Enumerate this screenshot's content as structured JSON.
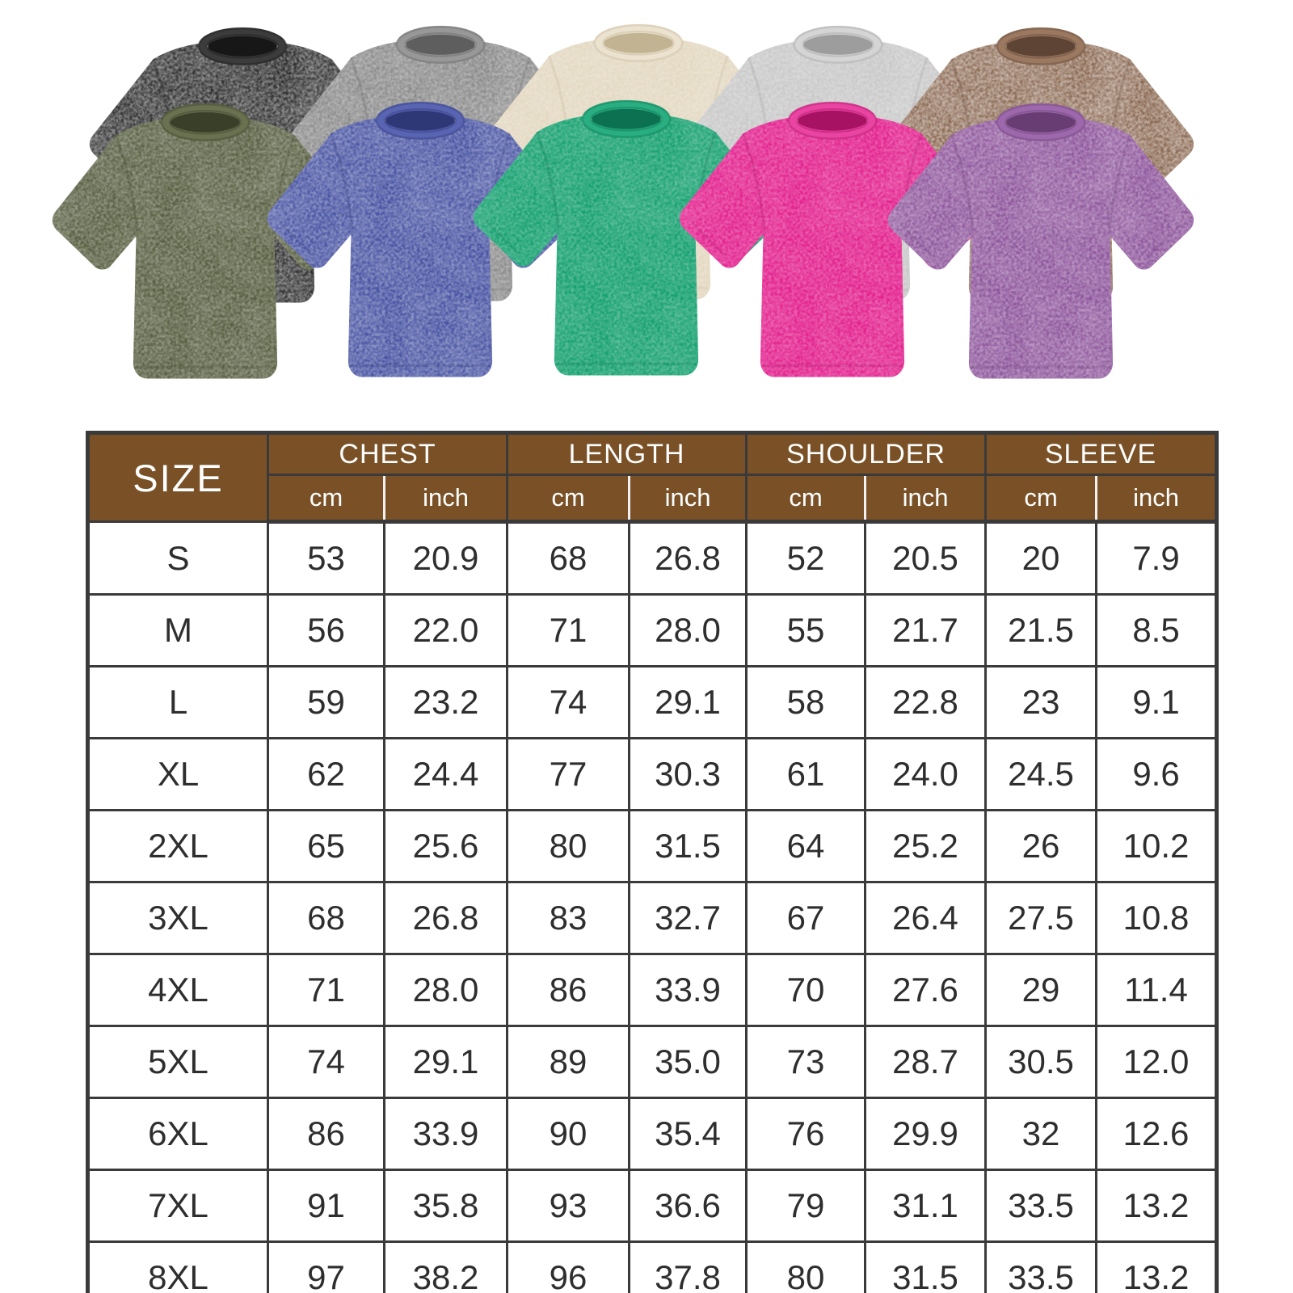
{
  "product_gallery": {
    "shirts": [
      {
        "name": "washed-black",
        "row": "back",
        "color": "#2e2d2d",
        "dark": "#181717",
        "trim": "#3d3c3c",
        "wash": 0.38
      },
      {
        "name": "washed-gray",
        "row": "back",
        "color": "#8b8b8b",
        "dark": "#5e5e5e",
        "trim": "#989898",
        "wash": 0.3
      },
      {
        "name": "washed-beige",
        "row": "back",
        "color": "#e4d9c2",
        "dark": "#c2b392",
        "trim": "#ebe2cf",
        "wash": 0.22
      },
      {
        "name": "washed-light-gray",
        "row": "back",
        "color": "#c9c9c9",
        "dark": "#9d9d9d",
        "trim": "#d5d5d5",
        "wash": 0.26
      },
      {
        "name": "washed-brown",
        "row": "back",
        "color": "#8c6a53",
        "dark": "#5e4434",
        "trim": "#9b7961",
        "wash": 0.42
      },
      {
        "name": "washed-army-green",
        "row": "front",
        "color": "#5a6143",
        "dark": "#3a3f29",
        "trim": "#697150",
        "wash": 0.28
      },
      {
        "name": "washed-blue",
        "row": "front",
        "color": "#4a55a4",
        "dark": "#2f3877",
        "trim": "#5964b2",
        "wash": 0.3
      },
      {
        "name": "washed-green",
        "row": "front",
        "color": "#17a271",
        "dark": "#0c7150",
        "trim": "#28ae80",
        "wash": 0.24
      },
      {
        "name": "washed-rose",
        "row": "front",
        "color": "#e42390",
        "dark": "#a71263",
        "trim": "#ea44a2",
        "wash": 0.24
      },
      {
        "name": "washed-purple",
        "row": "front",
        "color": "#90589e",
        "dark": "#673d73",
        "trim": "#9e69ac",
        "wash": 0.3
      }
    ]
  },
  "size_chart": {
    "header": {
      "size_label": "SIZE",
      "groups": [
        {
          "label": "CHEST",
          "units": [
            "cm",
            "inch"
          ]
        },
        {
          "label": "LENGTH",
          "units": [
            "cm",
            "inch"
          ]
        },
        {
          "label": "SHOULDER",
          "units": [
            "cm",
            "inch"
          ]
        },
        {
          "label": "SLEEVE",
          "units": [
            "cm",
            "inch"
          ]
        }
      ]
    },
    "rows": [
      {
        "size": "S",
        "values": [
          "53",
          "20.9",
          "68",
          "26.8",
          "52",
          "20.5",
          "20",
          "7.9"
        ]
      },
      {
        "size": "M",
        "values": [
          "56",
          "22.0",
          "71",
          "28.0",
          "55",
          "21.7",
          "21.5",
          "8.5"
        ]
      },
      {
        "size": "L",
        "values": [
          "59",
          "23.2",
          "74",
          "29.1",
          "58",
          "22.8",
          "23",
          "9.1"
        ]
      },
      {
        "size": "XL",
        "values": [
          "62",
          "24.4",
          "77",
          "30.3",
          "61",
          "24.0",
          "24.5",
          "9.6"
        ]
      },
      {
        "size": "2XL",
        "values": [
          "65",
          "25.6",
          "80",
          "31.5",
          "64",
          "25.2",
          "26",
          "10.2"
        ]
      },
      {
        "size": "3XL",
        "values": [
          "68",
          "26.8",
          "83",
          "32.7",
          "67",
          "26.4",
          "27.5",
          "10.8"
        ]
      },
      {
        "size": "4XL",
        "values": [
          "71",
          "28.0",
          "86",
          "33.9",
          "70",
          "27.6",
          "29",
          "11.4"
        ]
      },
      {
        "size": "5XL",
        "values": [
          "74",
          "29.1",
          "89",
          "35.0",
          "73",
          "28.7",
          "30.5",
          "12.0"
        ]
      },
      {
        "size": "6XL",
        "values": [
          "86",
          "33.9",
          "90",
          "35.4",
          "76",
          "29.9",
          "32",
          "12.6"
        ]
      },
      {
        "size": "7XL",
        "values": [
          "91",
          "35.8",
          "93",
          "36.6",
          "79",
          "31.1",
          "33.5",
          "13.2"
        ]
      },
      {
        "size": "8XL",
        "values": [
          "97",
          "38.2",
          "96",
          "37.8",
          "80",
          "31.5",
          "33.5",
          "13.2"
        ]
      }
    ]
  },
  "chart_data": {
    "type": "table",
    "columns": [
      "SIZE",
      "CHEST cm",
      "CHEST inch",
      "LENGTH cm",
      "LENGTH inch",
      "SHOULDER cm",
      "SHOULDER inch",
      "SLEEVE cm",
      "SLEEVE inch"
    ],
    "rows": [
      [
        "S",
        53,
        20.9,
        68,
        26.8,
        52,
        20.5,
        20,
        7.9
      ],
      [
        "M",
        56,
        22.0,
        71,
        28.0,
        55,
        21.7,
        21.5,
        8.5
      ],
      [
        "L",
        59,
        23.2,
        74,
        29.1,
        58,
        22.8,
        23,
        9.1
      ],
      [
        "XL",
        62,
        24.4,
        77,
        30.3,
        61,
        24.0,
        24.5,
        9.6
      ],
      [
        "2XL",
        65,
        25.6,
        80,
        31.5,
        64,
        25.2,
        26,
        10.2
      ],
      [
        "3XL",
        68,
        26.8,
        83,
        32.7,
        67,
        26.4,
        27.5,
        10.8
      ],
      [
        "4XL",
        71,
        28.0,
        86,
        33.9,
        70,
        27.6,
        29,
        11.4
      ],
      [
        "5XL",
        74,
        29.1,
        89,
        35.0,
        73,
        28.7,
        30.5,
        12.0
      ],
      [
        "6XL",
        86,
        33.9,
        90,
        35.4,
        76,
        29.9,
        32,
        12.6
      ],
      [
        "7XL",
        91,
        35.8,
        93,
        36.6,
        79,
        31.1,
        33.5,
        13.2
      ],
      [
        "8XL",
        97,
        38.2,
        96,
        37.8,
        80,
        31.5,
        33.5,
        13.2
      ]
    ]
  },
  "colors": {
    "header_bg": "#7a5127",
    "header_text": "#ffffff",
    "grid_line": "#3a3a3a",
    "table_text": "#2e2e2e",
    "page_bg": "#ffffff"
  }
}
